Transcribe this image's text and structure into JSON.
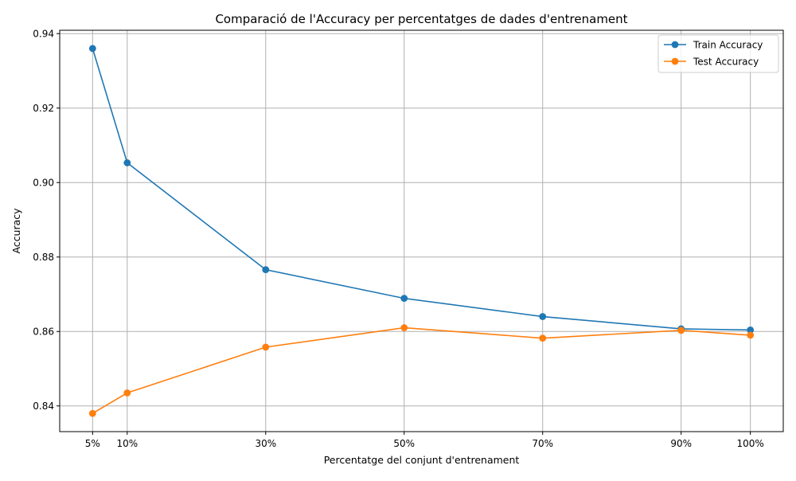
{
  "chart_data": {
    "type": "line",
    "title": "Comparació de l'Accuracy per percentatges de dades d'entrenament",
    "xlabel": "Percentatge del conjunt d'entrenament",
    "ylabel": "Accuracy",
    "x": [
      5,
      10,
      30,
      50,
      70,
      90,
      100
    ],
    "x_tick_labels": [
      "5%",
      "10%",
      "30%",
      "50%",
      "70%",
      "90%",
      "100%"
    ],
    "xlim": [
      0.25,
      104.75
    ],
    "ylim": [
      0.8331,
      0.9409
    ],
    "y_ticks": [
      0.84,
      0.86,
      0.88,
      0.9,
      0.92,
      0.94
    ],
    "y_tick_labels": [
      "0.84",
      "0.86",
      "0.88",
      "0.90",
      "0.92",
      "0.94"
    ],
    "grid": true,
    "legend_position": "top-right",
    "series": [
      {
        "name": "Train Accuracy",
        "color": "#1f77b4",
        "values": [
          0.936,
          0.9053,
          0.8766,
          0.8689,
          0.864,
          0.8607,
          0.8604
        ]
      },
      {
        "name": "Test Accuracy",
        "color": "#ff7f0e",
        "values": [
          0.838,
          0.8435,
          0.8558,
          0.861,
          0.8582,
          0.8603,
          0.859
        ]
      }
    ]
  }
}
